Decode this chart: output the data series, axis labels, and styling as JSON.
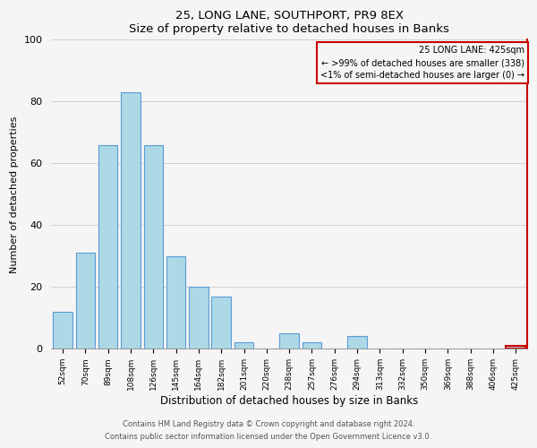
{
  "title": "25, LONG LANE, SOUTHPORT, PR9 8EX",
  "subtitle": "Size of property relative to detached houses in Banks",
  "xlabel": "Distribution of detached houses by size in Banks",
  "ylabel": "Number of detached properties",
  "categories": [
    "52sqm",
    "70sqm",
    "89sqm",
    "108sqm",
    "126sqm",
    "145sqm",
    "164sqm",
    "182sqm",
    "201sqm",
    "220sqm",
    "238sqm",
    "257sqm",
    "276sqm",
    "294sqm",
    "313sqm",
    "332sqm",
    "350sqm",
    "369sqm",
    "388sqm",
    "406sqm",
    "425sqm"
  ],
  "values": [
    12,
    31,
    66,
    83,
    66,
    30,
    20,
    17,
    2,
    0,
    5,
    2,
    0,
    4,
    0,
    0,
    0,
    0,
    0,
    0,
    1
  ],
  "bar_color": "#add8e6",
  "bar_edge_color": "#5b9bd5",
  "highlight_bar_index": 20,
  "highlight_bar_edge_color": "#cc0000",
  "ylim": [
    0,
    100
  ],
  "yticks": [
    0,
    20,
    40,
    60,
    80,
    100
  ],
  "legend_title": "25 LONG LANE: 425sqm",
  "legend_line1": "← >99% of detached houses are smaller (338)",
  "legend_line2": "<1% of semi-detached houses are larger (0) →",
  "legend_box_edge_color": "#cc0000",
  "right_spine_color": "#cc0000",
  "footer_line1": "Contains HM Land Registry data © Crown copyright and database right 2024.",
  "footer_line2": "Contains public sector information licensed under the Open Government Licence v3.0.",
  "background_color": "#f5f5f5",
  "grid_color": "#d0d0d0"
}
